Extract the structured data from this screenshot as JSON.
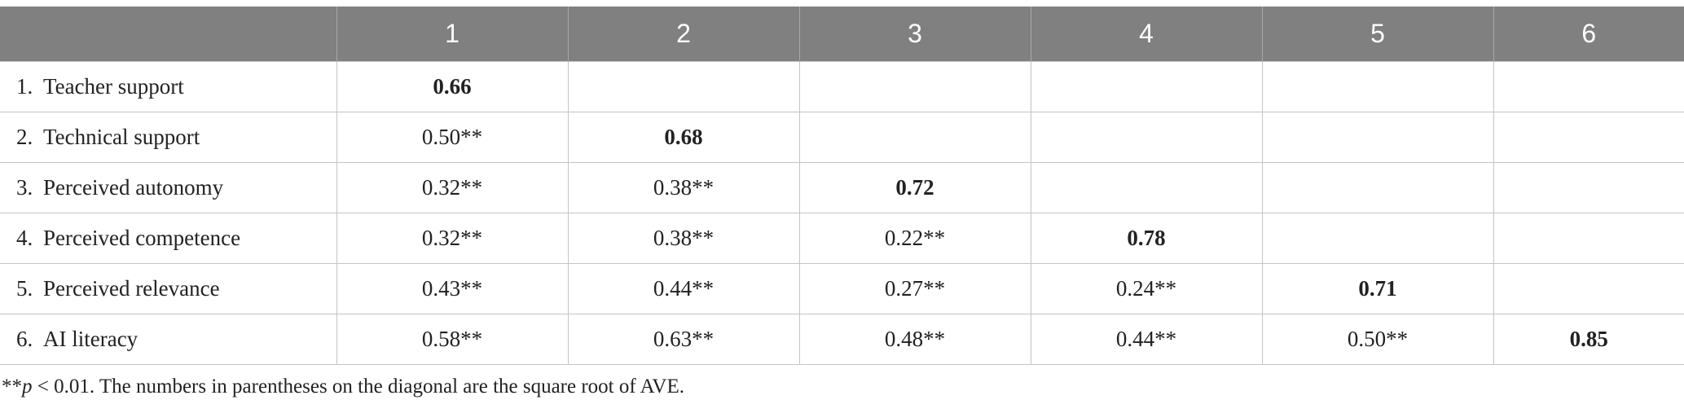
{
  "table": {
    "header": [
      "",
      "1",
      "2",
      "3",
      "4",
      "5",
      "6"
    ],
    "rows": [
      {
        "num": "1.",
        "label": "Teacher support",
        "cells": [
          "0.66",
          "",
          "",
          "",
          "",
          ""
        ]
      },
      {
        "num": "2.",
        "label": "Technical support",
        "cells": [
          "0.50**",
          "0.68",
          "",
          "",
          "",
          ""
        ]
      },
      {
        "num": "3.",
        "label": "Perceived autonomy",
        "cells": [
          "0.32**",
          "0.38**",
          "0.72",
          "",
          "",
          ""
        ]
      },
      {
        "num": "4.",
        "label": "Perceived competence",
        "cells": [
          "0.32**",
          "0.38**",
          "0.22**",
          "0.78",
          "",
          ""
        ]
      },
      {
        "num": "5.",
        "label": "Perceived relevance",
        "cells": [
          "0.43**",
          "0.44**",
          "0.27**",
          "0.24**",
          "0.71",
          ""
        ]
      },
      {
        "num": "6.",
        "label": "AI literacy",
        "cells": [
          "0.58**",
          "0.63**",
          "0.48**",
          "0.44**",
          "0.50**",
          "0.85"
        ]
      }
    ]
  },
  "footnote": {
    "stars": "**",
    "p": "p",
    "rest": " < 0.01. The numbers in parentheses on the diagonal are the square root of AVE."
  }
}
